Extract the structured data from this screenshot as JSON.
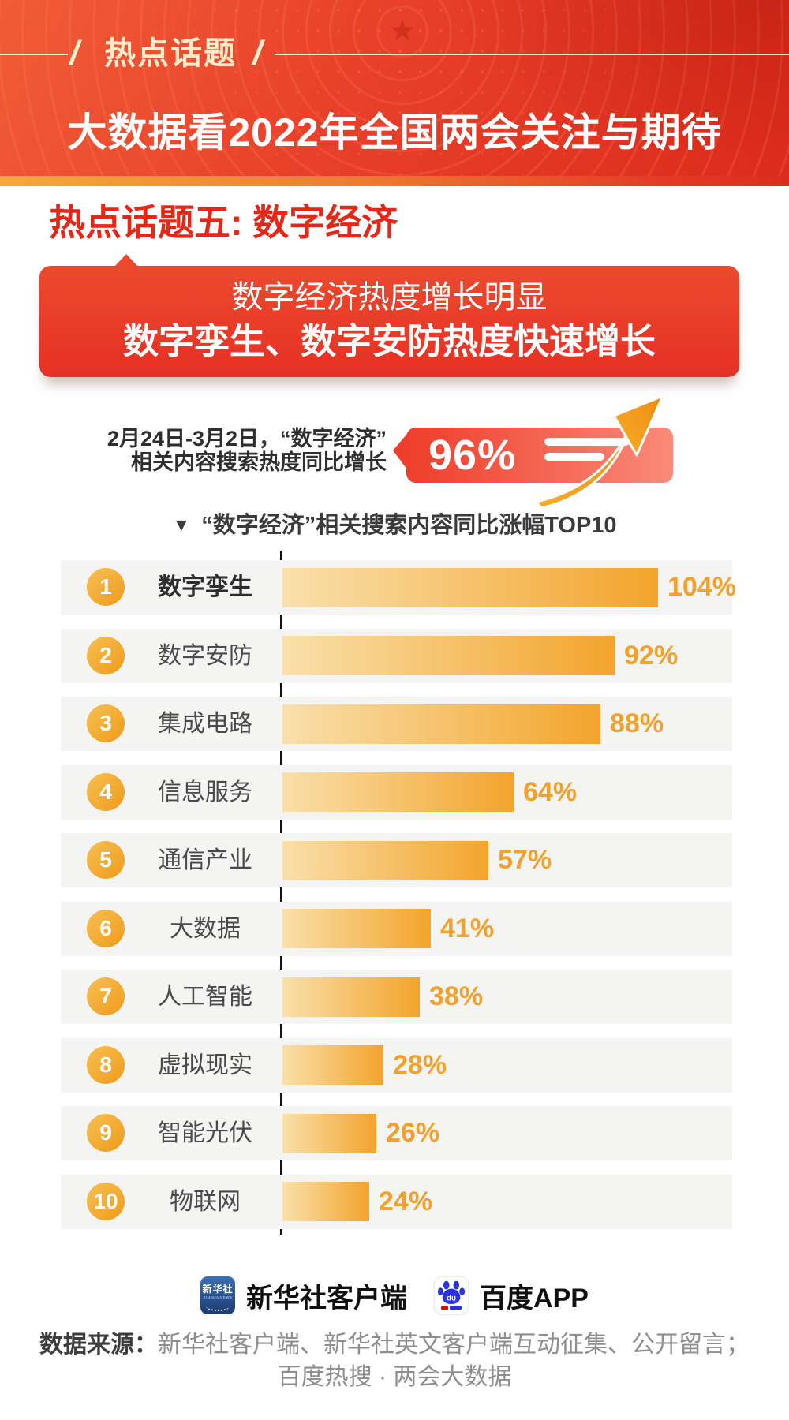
{
  "header": {
    "tag": "热点话题",
    "slash": "/",
    "title": "大数据看2022年全国两会关注与期待"
  },
  "section": {
    "title": "热点话题五: 数字经济"
  },
  "banner": {
    "line1": "数字经济热度增长明显",
    "line2": "数字孪生、数字安防热度快速增长"
  },
  "stat": {
    "desc_line1": "2月24日-3月2日，“数字经济”",
    "desc_line2": "相关内容搜索热度同比增长",
    "value": "96%"
  },
  "chart_title": {
    "marker": "▼",
    "text": "“数字经济”相关搜索内容同比涨幅TOP10"
  },
  "chart_data": {
    "type": "bar",
    "orientation": "horizontal",
    "title": "“数字经济”相关搜索内容同比涨幅TOP10",
    "unit": "%",
    "xlim": [
      0,
      110
    ],
    "ranks": [
      "1",
      "2",
      "3",
      "4",
      "5",
      "6",
      "7",
      "8",
      "9",
      "10"
    ],
    "categories": [
      "数字孪生",
      "数字安防",
      "集成电路",
      "信息服务",
      "通信产业",
      "大数据",
      "人工智能",
      "虚拟现实",
      "智能光伏",
      "物联网"
    ],
    "values": [
      104,
      92,
      88,
      64,
      57,
      41,
      38,
      28,
      26,
      24
    ],
    "value_labels": [
      "104%",
      "92%",
      "88%",
      "64%",
      "57%",
      "41%",
      "38%",
      "28%",
      "26%",
      "24%"
    ],
    "bar_color_start": "#f9e0ab",
    "bar_color_end": "#f3a42c",
    "value_color": "#f1a12c",
    "axis_color": "#141414"
  },
  "footer": {
    "xinhua_logo_text": "新华社",
    "xinhua_logo_sub": "XINHUA NEWS",
    "xinhua_label": "新华社客户端",
    "baidu_logo_text": "du",
    "baidu_label": "百度APP"
  },
  "source": {
    "prefix": "数据来源：",
    "line1": "新华社客户端、新华社英文客户端互动征集、公开留言；",
    "line2": "百度热搜 · 两会大数据"
  },
  "colors": {
    "header_red": "#e8402a",
    "strip_gold": "#f4a93a",
    "section_red": "#e52718",
    "banner_red": "#e63023",
    "badge_red_left": "#ee3e2b",
    "badge_red_right": "#fa8a79",
    "arrow_gold": "#f3a01d"
  }
}
